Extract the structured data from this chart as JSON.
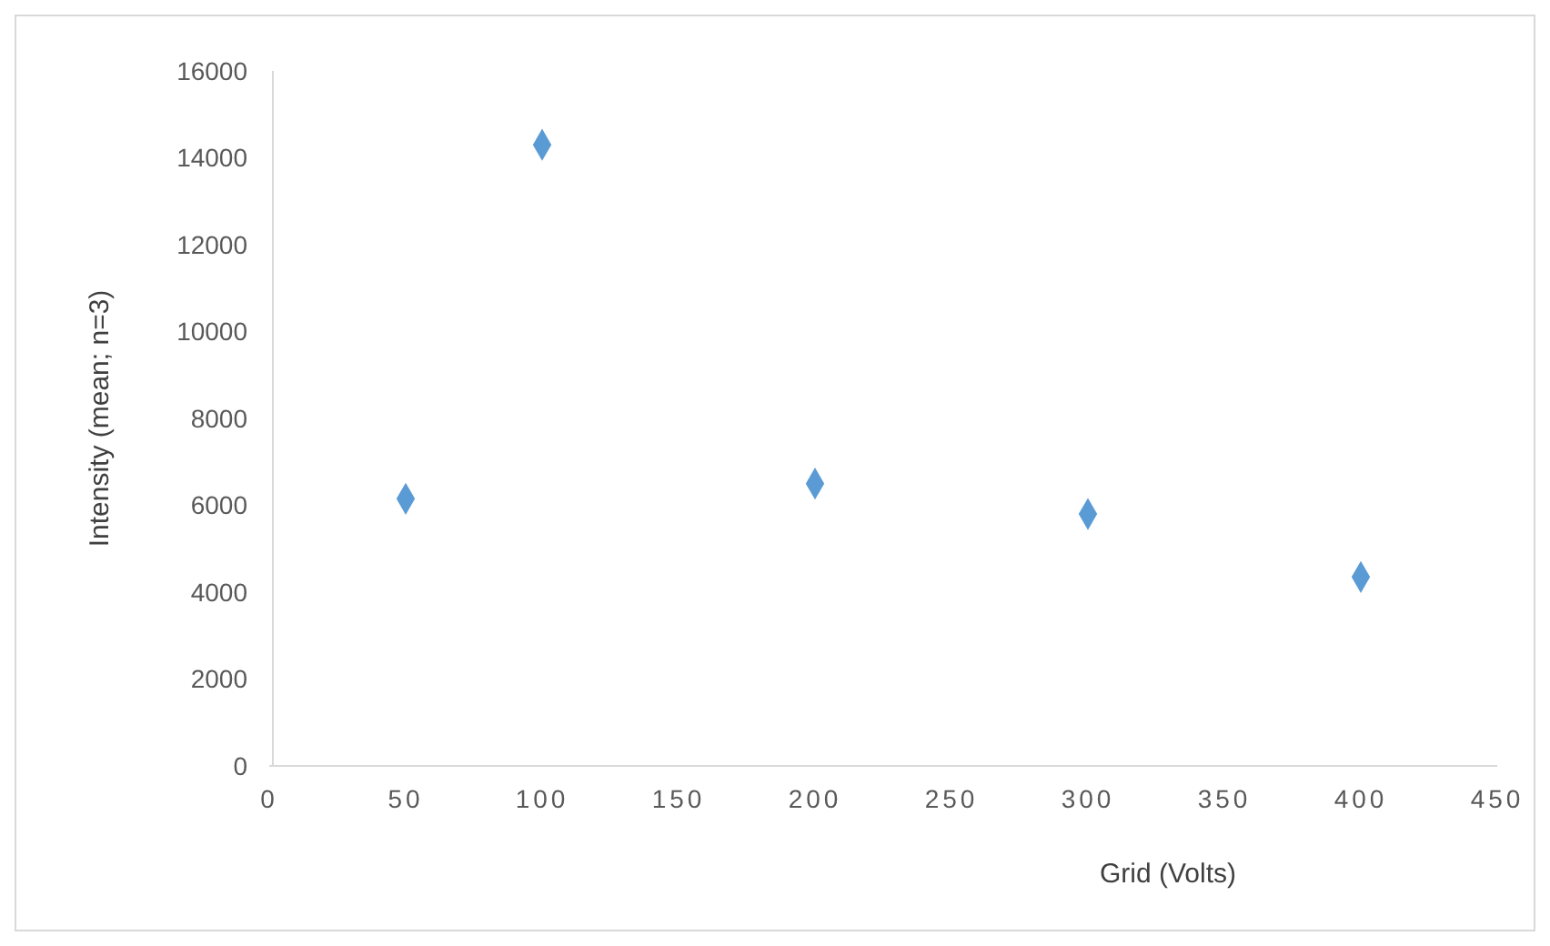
{
  "chart_data": {
    "type": "scatter",
    "xlabel": "Grid (Volts)",
    "ylabel": "Intensity (mean; n=3)",
    "x": [
      50,
      100,
      200,
      300,
      400
    ],
    "series": [
      {
        "color": "#5b9bd5",
        "values": [
          6150,
          14300,
          6500,
          5800,
          4350
        ]
      }
    ],
    "xlim": [
      0,
      450
    ],
    "xticks": [
      0,
      50,
      100,
      150,
      200,
      250,
      300,
      350,
      400,
      450
    ],
    "ylim": [
      0,
      16000
    ],
    "yticks": [
      0,
      2000,
      4000,
      6000,
      8000,
      10000,
      12000,
      14000,
      16000
    ],
    "marker": "diamond",
    "grid": false
  }
}
